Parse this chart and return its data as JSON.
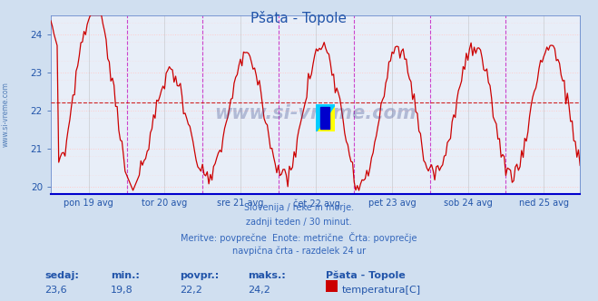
{
  "title": "Pšata - Topole",
  "ylim": [
    19.8,
    24.5
  ],
  "yticks": [
    20,
    21,
    22,
    23,
    24
  ],
  "bg_color": "#d0dff0",
  "plot_bg_color": "#e8eef8",
  "line_color": "#cc0000",
  "grid_h_color": "#ffcccc",
  "grid_v_color": "#dddddd",
  "hline_avg": 22.2,
  "hline_color": "#cc0000",
  "vline_midnight_color": "#cc44cc",
  "vline_noon_color": "#aaaaaa",
  "x_labels": [
    "pon 19 avg",
    "tor 20 avg",
    "sre 21 avg",
    "čet 22 avg",
    "pet 23 avg",
    "sob 24 avg",
    "ned 25 avg"
  ],
  "n_points": 336,
  "watermark": "www.si-vreme.com",
  "watermark_color": "#334488",
  "footer_lines": [
    "Slovenija / reke in morje.",
    "zadnji teden / 30 minut.",
    "Meritve: povprečne  Enote: metrične  Črta: povprečje",
    "navpična črta - razdelek 24 ur"
  ],
  "legend_title": "Pšata - Topole",
  "legend_label": "temperatura[C]",
  "legend_color": "#cc0000",
  "stats_labels": [
    "sedaj:",
    "min.:",
    "povpr.:",
    "maks.:"
  ],
  "stats_values": [
    "23,6",
    "19,8",
    "22,2",
    "24,2"
  ],
  "stats_color": "#2255aa",
  "sidebar_text": "www.si-vreme.com",
  "sidebar_color": "#3366aa",
  "title_color": "#2255aa",
  "tick_color": "#2255aa",
  "footer_color": "#3366bb",
  "axis_spine_color": "#6688cc",
  "bottom_spine_color": "#0000cc"
}
